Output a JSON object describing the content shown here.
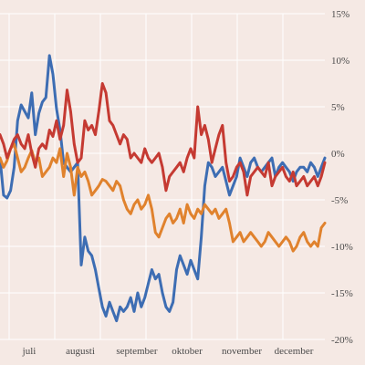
{
  "chart_data": {
    "type": "line",
    "title": "",
    "xlabel": "",
    "ylabel": "",
    "ylim": [
      -20,
      15
    ],
    "y_axis_side": "right",
    "y_ticks": [
      15,
      10,
      5,
      0,
      -5,
      -10,
      -15,
      -20
    ],
    "y_tick_labels": [
      "15%",
      "10%",
      "5%",
      "0%",
      "-5%",
      "-10%",
      "-15%",
      "-20%"
    ],
    "x_tick_labels": [
      "juli",
      "augusti",
      "september",
      "oktober",
      "november",
      "december"
    ],
    "grid": true,
    "x": [
      0,
      2,
      4,
      6,
      8,
      10,
      12,
      14,
      16,
      18,
      20,
      22,
      24,
      26,
      28,
      30,
      32,
      34,
      36,
      38,
      40,
      42,
      44,
      46,
      48,
      50,
      52,
      54,
      56,
      58,
      60,
      62,
      64,
      66,
      68,
      70,
      72,
      74,
      76,
      78,
      80,
      82,
      84,
      86,
      88,
      90,
      92,
      94,
      96,
      98,
      100,
      102,
      104,
      106,
      108,
      110,
      112,
      114,
      116,
      118,
      120,
      122,
      124,
      126,
      128,
      130,
      132,
      134,
      136,
      138,
      140,
      142,
      144,
      146,
      148,
      150,
      152,
      154,
      156,
      158,
      160,
      162,
      164,
      166,
      168,
      170,
      172,
      174,
      176,
      178,
      180,
      182,
      184
    ],
    "series": [
      {
        "color": "#3d6db3",
        "values": [
          -0.5,
          -4.5,
          -4.8,
          -4.0,
          -1.5,
          3.5,
          5.2,
          4.5,
          3.8,
          6.5,
          2.0,
          4.3,
          5.5,
          6.0,
          10.5,
          8.5,
          4.8,
          2.5,
          -1.0,
          -1.5,
          -2.0,
          -1.5,
          -1.0,
          -12.0,
          -9.0,
          -10.5,
          -11.0,
          -12.5,
          -14.5,
          -16.5,
          -17.5,
          -16.0,
          -17.0,
          -18.0,
          -16.5,
          -17.0,
          -16.5,
          -15.5,
          -17.0,
          -15.0,
          -16.5,
          -15.5,
          -14.0,
          -12.5,
          -13.5,
          -13.0,
          -15.0,
          -16.5,
          -17.0,
          -16.0,
          -12.5,
          -11.0,
          -12.0,
          -13.0,
          -11.5,
          -12.5,
          -13.5,
          -9.0,
          -3.5,
          -1.0,
          -1.5,
          -2.5,
          -2.0,
          -1.5,
          -3.0,
          -4.5,
          -3.5,
          -2.5,
          -0.5,
          -1.5,
          -2.5,
          -1.0,
          -0.5,
          -1.5,
          -2.0,
          -1.5,
          -1.0,
          -0.5,
          -2.5,
          -1.5,
          -1.0,
          -1.5,
          -2.0,
          -3.0,
          -2.0,
          -1.5,
          -1.5,
          -2.0,
          -1.0,
          -1.5,
          -2.5,
          -1.5,
          -0.5
        ]
      },
      {
        "color": "#e0822d",
        "values": [
          -0.5,
          -1.5,
          -0.8,
          0.5,
          1.0,
          -0.5,
          -2.0,
          -1.5,
          -0.5,
          0.3,
          -1.0,
          -0.5,
          -2.5,
          -2.0,
          -1.5,
          -0.5,
          -1.0,
          0.5,
          -2.5,
          0.0,
          -1.5,
          -4.5,
          -1.5,
          -2.5,
          -2.0,
          -3.0,
          -4.5,
          -4.0,
          -3.5,
          -2.8,
          -3.0,
          -3.5,
          -4.0,
          -3.0,
          -3.5,
          -5.0,
          -6.0,
          -6.5,
          -5.5,
          -5.0,
          -6.0,
          -5.5,
          -4.5,
          -6.0,
          -8.5,
          -9.0,
          -8.0,
          -7.0,
          -6.5,
          -7.5,
          -7.0,
          -6.0,
          -7.5,
          -5.5,
          -6.5,
          -7.0,
          -6.0,
          -6.5,
          -5.5,
          -6.0,
          -6.5,
          -6.0,
          -7.0,
          -6.5,
          -6.0,
          -7.5,
          -9.5,
          -9.0,
          -8.5,
          -9.5,
          -9.0,
          -8.5,
          -9.0,
          -9.5,
          -10.0,
          -9.5,
          -8.5,
          -9.0,
          -9.5,
          -10.0,
          -9.5,
          -9.0,
          -9.5,
          -10.5,
          -10.0,
          -9.0,
          -8.5,
          -9.5,
          -10.0,
          -9.5,
          -10.0,
          -8.0,
          -7.5
        ]
      },
      {
        "color": "#c53a32",
        "values": [
          2.0,
          1.0,
          -0.5,
          0.5,
          1.5,
          2.0,
          1.0,
          0.5,
          2.0,
          0.0,
          -1.5,
          0.5,
          1.0,
          0.5,
          2.5,
          1.8,
          3.5,
          1.5,
          3.0,
          6.8,
          4.5,
          1.0,
          -1.0,
          -0.5,
          3.5,
          2.5,
          3.0,
          2.0,
          4.5,
          7.5,
          6.5,
          3.5,
          3.0,
          2.0,
          1.0,
          2.0,
          1.5,
          -0.5,
          0.0,
          -0.5,
          -1.0,
          0.5,
          -0.5,
          -1.0,
          -0.5,
          0.0,
          -1.5,
          -4.0,
          -2.5,
          -2.0,
          -1.5,
          -1.0,
          -2.0,
          -0.5,
          0.5,
          -0.5,
          5.0,
          2.0,
          3.0,
          1.5,
          -1.0,
          0.5,
          2.0,
          3.0,
          -1.0,
          -3.0,
          -2.5,
          -1.5,
          -1.0,
          -2.0,
          -4.5,
          -2.5,
          -2.0,
          -1.5,
          -2.0,
          -2.5,
          -1.0,
          -3.5,
          -2.5,
          -2.0,
          -1.5,
          -2.5,
          -3.0,
          -2.0,
          -3.5,
          -3.0,
          -2.5,
          -3.5,
          -3.0,
          -2.5,
          -3.5,
          -2.5,
          -1.0
        ]
      }
    ]
  }
}
